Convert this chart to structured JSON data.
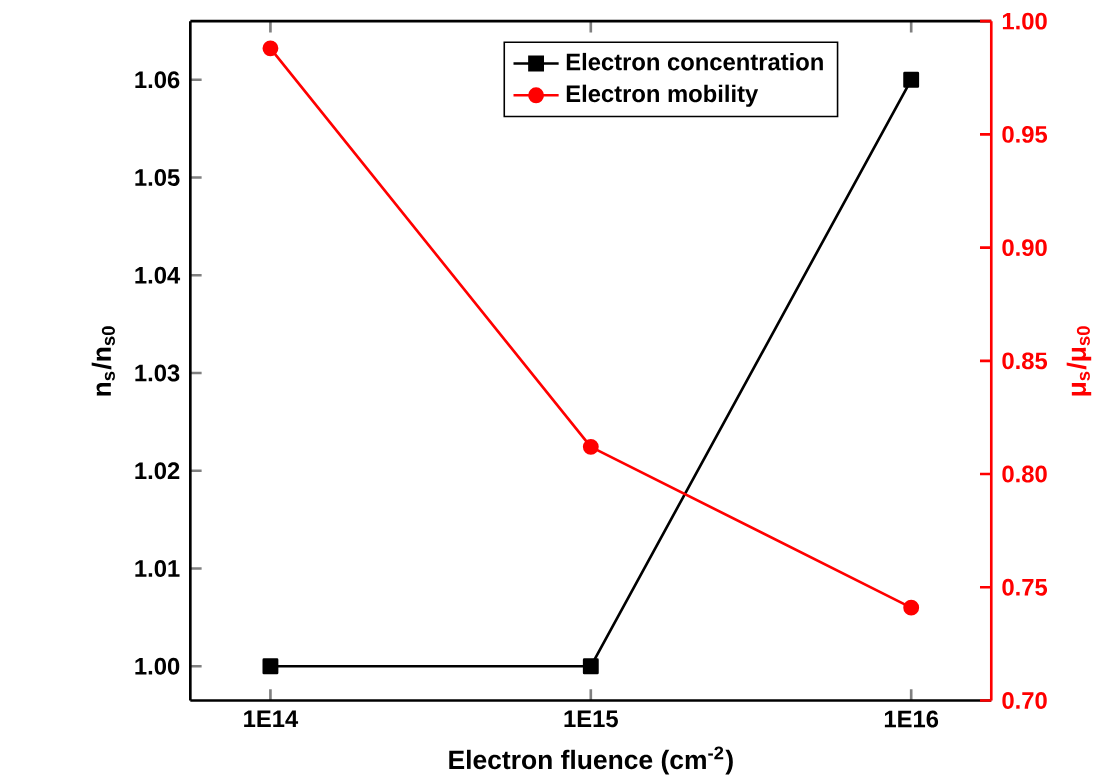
{
  "chart_data": {
    "type": "line",
    "xlabel": "Electron fluence (cm$^{-2}$)",
    "ylabel": "n$_{s}$/n$_{s0}$",
    "y2label": "μ$_{s}$/μ$_{s0}$",
    "categories": [
      "1E14",
      "1E15",
      "1E16"
    ],
    "series": [
      {
        "name": "Electron concentration",
        "color": "#000000",
        "values": [
          1.0,
          1.0,
          1.06
        ],
        "marker": "square"
      },
      {
        "name": "Electron mobility",
        "color": "#ff0000",
        "values": [
          0.988,
          0.812,
          0.741
        ],
        "marker": "circle",
        "axis": "y2"
      }
    ],
    "ylim": [
      0.9965,
      1.066
    ],
    "yticks": [
      {
        "value": 1.0,
        "label": "1.00"
      },
      {
        "value": 1.01,
        "label": "1.01"
      },
      {
        "value": 1.02,
        "label": "1.02"
      },
      {
        "value": 1.03,
        "label": "1.03"
      },
      {
        "value": 1.04,
        "label": "1.04"
      },
      {
        "value": 1.05,
        "label": "1.05"
      },
      {
        "value": 1.06,
        "label": "1.06"
      }
    ],
    "y2lim": [
      0.7,
      1.0
    ],
    "y2ticks": [
      {
        "value": 0.7,
        "label": "0.70"
      },
      {
        "value": 0.75,
        "label": "0.75"
      },
      {
        "value": 0.8,
        "label": "0.80"
      },
      {
        "value": 0.85,
        "label": "0.85"
      },
      {
        "value": 0.9,
        "label": "0.90"
      },
      {
        "value": 0.95,
        "label": "0.95"
      },
      {
        "value": 1.0,
        "label": "1.00"
      }
    ],
    "legend": "top",
    "line_style": "solid"
  }
}
